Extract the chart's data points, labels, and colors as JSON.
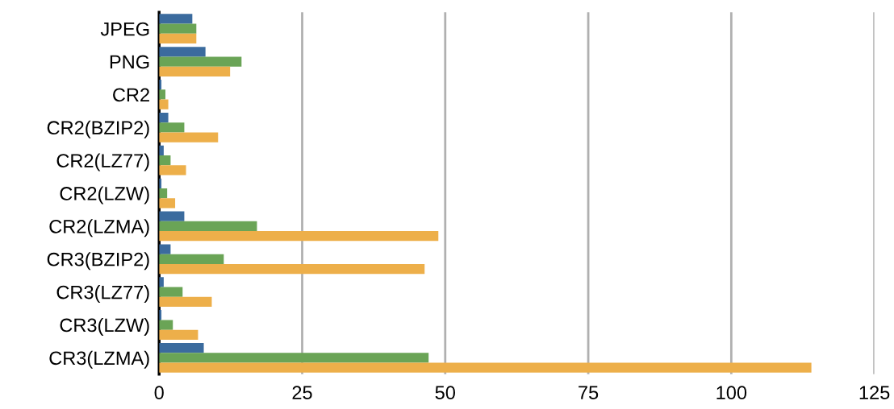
{
  "chart_data": {
    "type": "bar",
    "orientation": "horizontal",
    "grid": "x",
    "categories": [
      "JPEG",
      "PNG",
      "CR2",
      "CR2(BZIP2)",
      "CR2(LZ77)",
      "CR2(LZW)",
      "CR2(LZMA)",
      "CR3(BZIP2)",
      "CR3(LZ77)",
      "CR3(LZW)",
      "CR3(LZMA)"
    ],
    "series": [
      {
        "color": "#3b6b9e",
        "values": [
          5.8,
          8.1,
          0.4,
          1.6,
          0.8,
          0.4,
          4.4,
          2.0,
          0.8,
          0.4,
          7.8
        ]
      },
      {
        "color": "#6aa456",
        "values": [
          6.5,
          14.4,
          1.1,
          4.4,
          2.0,
          1.4,
          17.1,
          11.3,
          4.1,
          2.4,
          47.1
        ]
      },
      {
        "color": "#edaf4a",
        "values": [
          6.5,
          12.4,
          1.6,
          10.3,
          4.7,
          2.8,
          48.8,
          46.4,
          9.2,
          6.8,
          114
        ]
      }
    ],
    "xlim": [
      0,
      125
    ],
    "xticks": [
      0,
      25,
      50,
      75,
      100,
      125
    ]
  }
}
